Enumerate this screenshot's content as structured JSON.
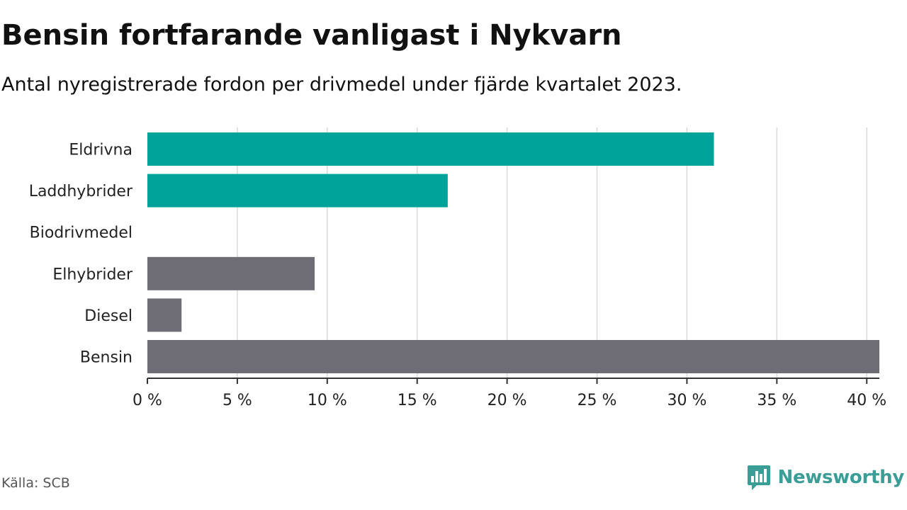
{
  "header": {
    "title": "Bensin fortfarande vanligast i Nykvarn",
    "subtitle": "Antal nyregistrerade fordon per drivmedel under fjärde kvartalet 2023."
  },
  "footer": {
    "source": "Källa: SCB",
    "brand": "Newsworthy",
    "brand_icon": "newsworthy-logo-icon"
  },
  "colors": {
    "highlight": "#00a39a",
    "default": "#6e6c74",
    "grid": "#d9d9d9",
    "axis": "#333333",
    "brand": "#3a9e96"
  },
  "chart_data": {
    "type": "bar",
    "orientation": "horizontal",
    "categories": [
      "Eldrivna",
      "Laddhybrider",
      "Biodrivmedel",
      "Elhybrider",
      "Diesel",
      "Bensin"
    ],
    "values": [
      31.5,
      16.7,
      0,
      9.3,
      1.9,
      40.7
    ],
    "highlighted": [
      true,
      true,
      false,
      false,
      false,
      false
    ],
    "xlim": [
      0,
      40.7
    ],
    "x_ticks": [
      0,
      5,
      10,
      15,
      20,
      25,
      30,
      35,
      40
    ],
    "x_tick_labels": [
      "0 %",
      "5 %",
      "10 %",
      "15 %",
      "20 %",
      "25 %",
      "30 %",
      "35 %",
      "40 %"
    ],
    "grid": true,
    "title": "Bensin fortfarande vanligast i Nykvarn",
    "xlabel": "",
    "ylabel": ""
  }
}
